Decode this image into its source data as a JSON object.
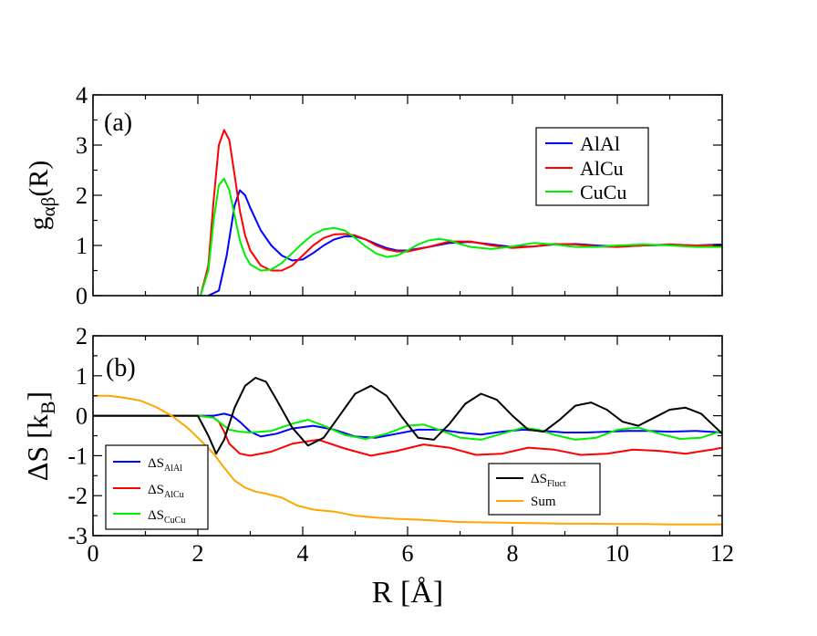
{
  "chart_data": [
    {
      "type": "line",
      "panel_label": "(a)",
      "ylabel": "g",
      "ylabel_sub": "αβ",
      "ylabel_suffix": "(R)",
      "xlim": [
        0,
        12
      ],
      "ylim": [
        0,
        4
      ],
      "xticks": [
        0,
        2,
        4,
        6,
        8,
        10,
        12
      ],
      "yticks": [
        0,
        1,
        2,
        3,
        4
      ],
      "ytick_labels": [
        "0",
        "1",
        "2",
        "3",
        "4"
      ],
      "grid": false,
      "legend_position": "top-right",
      "series": [
        {
          "name": "AlAl",
          "color": "#0000ff",
          "x": [
            2.2,
            2.4,
            2.55,
            2.7,
            2.8,
            2.9,
            3.0,
            3.2,
            3.4,
            3.6,
            3.8,
            4.0,
            4.2,
            4.4,
            4.6,
            4.8,
            5.0,
            5.2,
            5.4,
            5.6,
            5.8,
            6.0,
            6.4,
            6.8,
            7.2,
            7.6,
            8.0,
            8.4,
            8.8,
            9.2,
            9.6,
            10.0,
            10.5,
            11.0,
            11.5,
            12.0
          ],
          "y": [
            0.0,
            0.1,
            0.8,
            1.8,
            2.1,
            2.0,
            1.75,
            1.3,
            1.0,
            0.8,
            0.7,
            0.72,
            0.85,
            1.0,
            1.12,
            1.18,
            1.18,
            1.12,
            1.03,
            0.95,
            0.9,
            0.9,
            0.97,
            1.05,
            1.07,
            1.02,
            0.97,
            0.98,
            1.02,
            1.03,
            1.0,
            0.98,
            1.0,
            1.01,
            1.0,
            1.02
          ]
        },
        {
          "name": "AlCu",
          "color": "#ff0000",
          "x": [
            2.05,
            2.2,
            2.3,
            2.4,
            2.5,
            2.6,
            2.7,
            2.8,
            2.9,
            3.0,
            3.2,
            3.4,
            3.6,
            3.8,
            4.0,
            4.2,
            4.4,
            4.6,
            4.8,
            5.0,
            5.2,
            5.4,
            5.6,
            5.8,
            6.0,
            6.4,
            6.8,
            7.2,
            7.6,
            8.0,
            8.4,
            8.8,
            9.2,
            9.6,
            10.0,
            10.5,
            11.0,
            11.5,
            12.0
          ],
          "y": [
            0.0,
            0.6,
            1.9,
            3.0,
            3.3,
            3.1,
            2.4,
            1.7,
            1.2,
            0.9,
            0.6,
            0.5,
            0.5,
            0.6,
            0.8,
            1.0,
            1.15,
            1.22,
            1.23,
            1.2,
            1.12,
            1.0,
            0.92,
            0.88,
            0.88,
            0.97,
            1.08,
            1.08,
            1.0,
            0.95,
            0.98,
            1.03,
            1.02,
            0.98,
            0.97,
            1.0,
            1.02,
            1.0,
            1.0
          ]
        },
        {
          "name": "CuCu",
          "color": "#00ee00",
          "x": [
            2.05,
            2.2,
            2.3,
            2.4,
            2.5,
            2.6,
            2.7,
            2.8,
            2.9,
            3.0,
            3.2,
            3.4,
            3.6,
            3.8,
            4.0,
            4.2,
            4.4,
            4.6,
            4.8,
            5.0,
            5.2,
            5.4,
            5.6,
            5.8,
            6.0,
            6.2,
            6.4,
            6.6,
            6.8,
            7.0,
            7.2,
            7.6,
            8.0,
            8.4,
            8.8,
            9.2,
            9.6,
            10.0,
            10.5,
            11.0,
            11.5,
            12.0
          ],
          "y": [
            0.0,
            0.5,
            1.5,
            2.2,
            2.33,
            2.1,
            1.6,
            1.1,
            0.8,
            0.62,
            0.5,
            0.52,
            0.65,
            0.85,
            1.05,
            1.22,
            1.32,
            1.35,
            1.3,
            1.15,
            0.98,
            0.84,
            0.77,
            0.8,
            0.9,
            1.02,
            1.1,
            1.13,
            1.1,
            1.03,
            0.97,
            0.93,
            0.98,
            1.05,
            1.02,
            0.97,
            0.97,
            1.0,
            1.02,
            1.0,
            0.97,
            0.97
          ]
        }
      ]
    },
    {
      "type": "line",
      "panel_label": "(b)",
      "ylabel": "ΔS  [k",
      "ylabel_sub": "B",
      "ylabel_suffix": "]",
      "xlabel": "R  [Å]",
      "xlim": [
        0,
        12
      ],
      "ylim": [
        -3,
        2
      ],
      "xticks": [
        0,
        2,
        4,
        6,
        8,
        10,
        12
      ],
      "xtick_labels": [
        "0",
        "2",
        "4",
        "6",
        "8",
        "10",
        "12"
      ],
      "yticks": [
        -3,
        -2,
        -1,
        0,
        1,
        2
      ],
      "ytick_labels": [
        "-3",
        "-2",
        "-1",
        "0",
        "1",
        "2"
      ],
      "grid": false,
      "legend_position": "bottom-left and bottom-right",
      "series": [
        {
          "name": "ΔS",
          "name_sub": "AlAl",
          "color": "#0000ff",
          "x": [
            0,
            2.0,
            2.3,
            2.5,
            2.65,
            2.8,
            3.0,
            3.2,
            3.5,
            3.8,
            4.2,
            4.6,
            5.0,
            5.4,
            5.8,
            6.2,
            6.6,
            7.0,
            7.4,
            7.8,
            8.2,
            8.6,
            9.0,
            9.4,
            9.8,
            10.2,
            10.6,
            11.0,
            11.5,
            12.0
          ],
          "y": [
            0,
            0,
            0.0,
            0.05,
            0.0,
            -0.15,
            -0.4,
            -0.52,
            -0.45,
            -0.32,
            -0.25,
            -0.35,
            -0.52,
            -0.55,
            -0.45,
            -0.35,
            -0.35,
            -0.42,
            -0.47,
            -0.4,
            -0.35,
            -0.38,
            -0.42,
            -0.42,
            -0.4,
            -0.38,
            -0.38,
            -0.4,
            -0.38,
            -0.42
          ]
        },
        {
          "name": "ΔS",
          "name_sub": "AlCu",
          "color": "#ff0000",
          "x": [
            0,
            2.0,
            2.3,
            2.4,
            2.5,
            2.6,
            2.8,
            3.0,
            3.4,
            3.8,
            4.3,
            4.8,
            5.3,
            5.8,
            6.3,
            6.8,
            7.3,
            7.8,
            8.3,
            8.8,
            9.3,
            9.8,
            10.3,
            10.8,
            11.3,
            11.8,
            12.0
          ],
          "y": [
            0,
            0,
            -0.05,
            -0.15,
            -0.4,
            -0.7,
            -0.95,
            -1.0,
            -0.9,
            -0.7,
            -0.6,
            -0.82,
            -1.0,
            -0.88,
            -0.72,
            -0.8,
            -0.98,
            -0.95,
            -0.8,
            -0.85,
            -0.98,
            -0.95,
            -0.85,
            -0.88,
            -0.95,
            -0.85,
            -0.8
          ]
        },
        {
          "name": "ΔS",
          "name_sub": "CuCu",
          "color": "#00ee00",
          "x": [
            0,
            2.0,
            2.3,
            2.45,
            2.6,
            2.8,
            3.0,
            3.4,
            3.8,
            4.1,
            4.4,
            4.8,
            5.2,
            5.6,
            6.0,
            6.3,
            6.6,
            7.0,
            7.4,
            7.8,
            8.2,
            8.5,
            8.8,
            9.2,
            9.6,
            10.0,
            10.4,
            10.8,
            11.2,
            11.6,
            12.0
          ],
          "y": [
            0,
            0,
            -0.05,
            -0.2,
            -0.35,
            -0.4,
            -0.42,
            -0.38,
            -0.2,
            -0.1,
            -0.25,
            -0.48,
            -0.58,
            -0.45,
            -0.25,
            -0.22,
            -0.35,
            -0.55,
            -0.6,
            -0.45,
            -0.3,
            -0.35,
            -0.48,
            -0.6,
            -0.55,
            -0.35,
            -0.3,
            -0.45,
            -0.58,
            -0.55,
            -0.38
          ]
        },
        {
          "name": "ΔS",
          "name_sub": "Fluct",
          "color": "#000000",
          "x": [
            0,
            2.0,
            2.2,
            2.35,
            2.5,
            2.7,
            2.9,
            3.1,
            3.3,
            3.5,
            3.8,
            4.1,
            4.4,
            4.7,
            5.0,
            5.3,
            5.6,
            5.9,
            6.2,
            6.5,
            6.8,
            7.1,
            7.4,
            7.7,
            8.0,
            8.3,
            8.6,
            8.9,
            9.2,
            9.5,
            9.8,
            10.1,
            10.4,
            10.7,
            11.0,
            11.3,
            11.6,
            12.0
          ],
          "y": [
            0,
            0,
            -0.5,
            -0.95,
            -0.6,
            0.2,
            0.75,
            0.95,
            0.85,
            0.4,
            -0.3,
            -0.75,
            -0.55,
            0.0,
            0.55,
            0.75,
            0.5,
            -0.05,
            -0.55,
            -0.6,
            -0.2,
            0.3,
            0.55,
            0.4,
            0.0,
            -0.35,
            -0.4,
            -0.1,
            0.25,
            0.33,
            0.15,
            -0.15,
            -0.25,
            -0.05,
            0.15,
            0.2,
            0.05,
            -0.45
          ]
        },
        {
          "name": "Sum",
          "color": "#ffa500",
          "x": [
            0,
            0.3,
            0.6,
            0.9,
            1.2,
            1.5,
            1.8,
            2.1,
            2.3,
            2.5,
            2.7,
            2.9,
            3.1,
            3.3,
            3.6,
            3.9,
            4.2,
            4.6,
            5.0,
            5.4,
            5.8,
            6.2,
            6.6,
            7.0,
            7.5,
            8.0,
            8.5,
            9.0,
            9.5,
            10.0,
            10.5,
            11.0,
            11.5,
            12.0
          ],
          "y": [
            0.5,
            0.5,
            0.45,
            0.38,
            0.22,
            0.0,
            -0.3,
            -0.68,
            -0.95,
            -1.3,
            -1.62,
            -1.8,
            -1.9,
            -1.95,
            -2.05,
            -2.25,
            -2.35,
            -2.4,
            -2.5,
            -2.55,
            -2.58,
            -2.6,
            -2.63,
            -2.66,
            -2.67,
            -2.68,
            -2.69,
            -2.7,
            -2.7,
            -2.71,
            -2.71,
            -2.72,
            -2.72,
            -2.72
          ]
        }
      ]
    }
  ]
}
